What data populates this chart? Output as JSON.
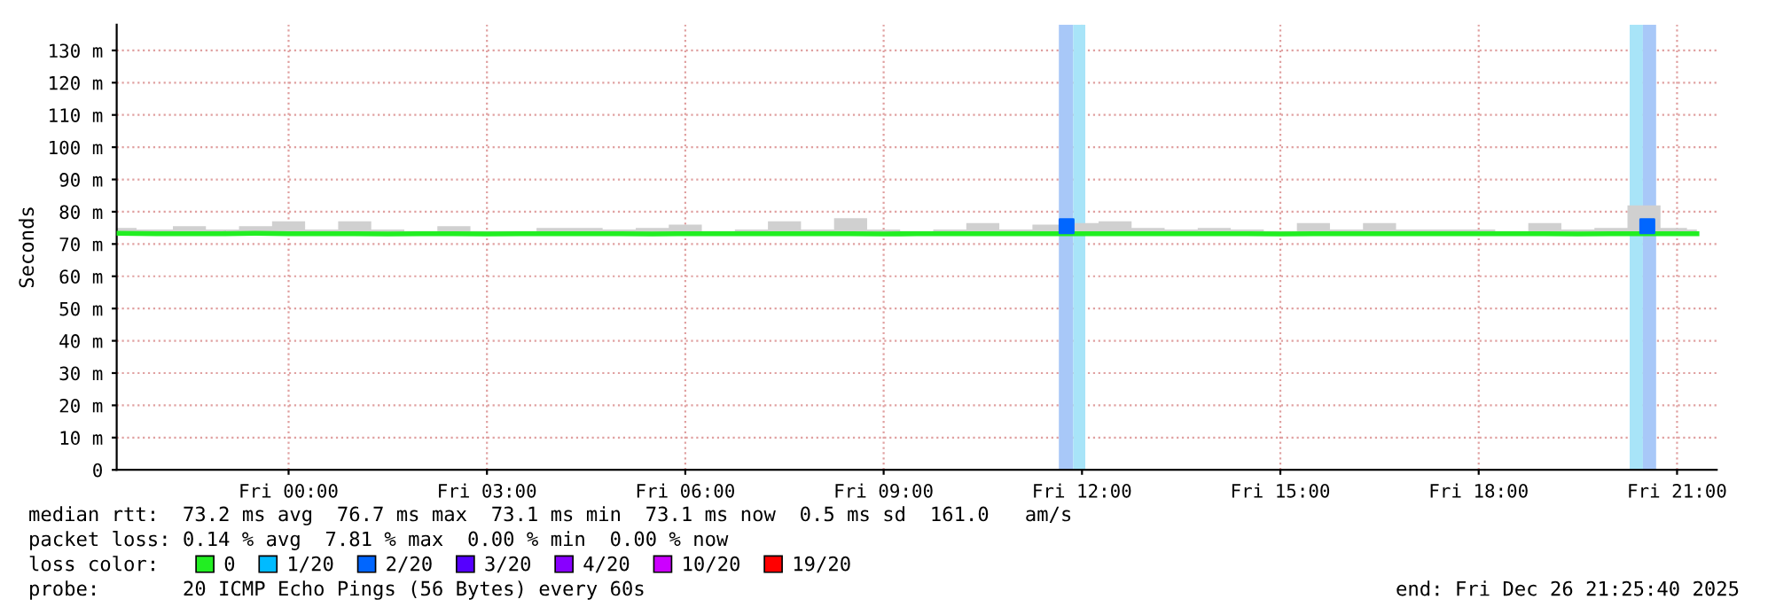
{
  "chart_data": {
    "type": "line",
    "ylabel": "Seconds",
    "xlim": [
      "2025-12-25T21:24",
      "2025-12-26T21:36"
    ],
    "ylim": [
      0,
      138
    ],
    "xticks": [
      {
        "value": "2025-12-26T00:00",
        "label": "Fri 00:00"
      },
      {
        "value": "2025-12-26T03:00",
        "label": "Fri 03:00"
      },
      {
        "value": "2025-12-26T06:00",
        "label": "Fri 06:00"
      },
      {
        "value": "2025-12-26T09:00",
        "label": "Fri 09:00"
      },
      {
        "value": "2025-12-26T12:00",
        "label": "Fri 12:00"
      },
      {
        "value": "2025-12-26T15:00",
        "label": "Fri 15:00"
      },
      {
        "value": "2025-12-26T18:00",
        "label": "Fri 18:00"
      },
      {
        "value": "2025-12-26T21:00",
        "label": "Fri 21:00"
      }
    ],
    "yticks": [
      0,
      {
        "value": 10,
        "label": "10 m"
      },
      {
        "value": 20,
        "label": "20 m"
      },
      {
        "value": 30,
        "label": "30 m"
      },
      {
        "value": 40,
        "label": "40 m"
      },
      {
        "value": 50,
        "label": "50 m"
      },
      {
        "value": 60,
        "label": "60 m"
      },
      {
        "value": 70,
        "label": "70 m"
      },
      {
        "value": 80,
        "label": "80 m"
      },
      {
        "value": 90,
        "label": "90 m"
      },
      {
        "value": 100,
        "label": "100 m"
      },
      {
        "value": 110,
        "label": "110 m"
      },
      {
        "value": 120,
        "label": "120 m"
      },
      {
        "value": 130,
        "label": "130 m"
      }
    ],
    "grid": true,
    "legend": "bottom",
    "legend_title": "loss color:",
    "bands": [
      {
        "axis": "x",
        "from": "2025-12-26T11:39",
        "to": "2025-12-26T11:52",
        "color": "#a8c8f8"
      },
      {
        "axis": "x",
        "from": "2025-12-26T11:52",
        "to": "2025-12-26T12:03",
        "color": "#a8e4f8"
      },
      {
        "axis": "x",
        "from": "2025-12-26T20:17",
        "to": "2025-12-26T20:29",
        "color": "#a8e4f8"
      },
      {
        "axis": "x",
        "from": "2025-12-26T20:29",
        "to": "2025-12-26T20:41",
        "color": "#a8c8f8"
      }
    ],
    "series": [
      {
        "name": "0",
        "color": "#22ee22",
        "x": [
          "2025-12-25T21:24",
          "2025-12-25T22:00",
          "2025-12-25T22:30",
          "2025-12-25T23:00",
          "2025-12-25T23:30",
          "2025-12-26T00:00",
          "2025-12-26T00:30",
          "2025-12-26T01:00",
          "2025-12-26T01:30",
          "2025-12-26T02:00",
          "2025-12-26T02:30",
          "2025-12-26T03:00",
          "2025-12-26T03:30",
          "2025-12-26T04:00",
          "2025-12-26T04:30",
          "2025-12-26T05:00",
          "2025-12-26T05:30",
          "2025-12-26T06:00",
          "2025-12-26T06:30",
          "2025-12-26T07:00",
          "2025-12-26T07:30",
          "2025-12-26T08:00",
          "2025-12-26T08:30",
          "2025-12-26T09:00",
          "2025-12-26T09:30",
          "2025-12-26T10:00",
          "2025-12-26T10:30",
          "2025-12-26T11:00",
          "2025-12-26T11:30",
          "2025-12-26T12:00",
          "2025-12-26T12:30",
          "2025-12-26T13:00",
          "2025-12-26T13:30",
          "2025-12-26T14:00",
          "2025-12-26T14:30",
          "2025-12-26T15:00",
          "2025-12-26T15:30",
          "2025-12-26T16:00",
          "2025-12-26T16:30",
          "2025-12-26T17:00",
          "2025-12-26T17:30",
          "2025-12-26T18:00",
          "2025-12-26T18:30",
          "2025-12-26T19:00",
          "2025-12-26T19:30",
          "2025-12-26T20:00",
          "2025-12-26T20:30",
          "2025-12-26T21:00",
          "2025-12-26T21:18"
        ],
        "values": [
          73.3,
          73.2,
          73.2,
          73.2,
          73.3,
          73.2,
          73.2,
          73.2,
          73.1,
          73.2,
          73.2,
          73.1,
          73.2,
          73.2,
          73.2,
          73.2,
          73.1,
          73.2,
          73.2,
          73.2,
          73.2,
          73.2,
          73.2,
          73.1,
          73.2,
          73.2,
          73.2,
          73.2,
          73.2,
          73.2,
          73.2,
          73.2,
          73.2,
          73.2,
          73.2,
          73.1,
          73.2,
          73.2,
          73.2,
          73.2,
          73.2,
          73.2,
          73.2,
          73.2,
          73.1,
          73.2,
          73.2,
          73.2,
          73.2
        ],
        "lower": [
          73.0,
          73.0,
          73.0,
          73.0,
          73.0,
          73.0,
          73.0,
          73.0,
          73.0,
          73.0,
          73.0,
          73.0,
          73.0,
          73.0,
          73.0,
          73.0,
          73.0,
          73.0,
          73.0,
          73.0,
          73.0,
          73.0,
          73.0,
          73.0,
          73.0,
          73.0,
          73.0,
          73.0,
          73.0,
          73.0,
          73.0,
          73.0,
          73.0,
          73.0,
          73.0,
          73.0,
          73.0,
          73.0,
          73.0,
          73.0,
          73.0,
          73.0,
          73.0,
          73.0,
          73.0,
          73.0,
          73.0,
          73.0,
          73.0
        ],
        "upper": [
          75.0,
          74.5,
          75.5,
          74.5,
          75.5,
          77.0,
          74.5,
          77.0,
          74.5,
          74.0,
          75.5,
          74.0,
          74.0,
          75.0,
          75.0,
          74.5,
          75.0,
          76.0,
          74.0,
          74.5,
          77.0,
          74.5,
          78.0,
          74.5,
          74.0,
          74.5,
          76.5,
          74.5,
          76.0,
          76.5,
          77.0,
          75.0,
          74.5,
          75.0,
          74.5,
          74.0,
          76.5,
          74.5,
          76.5,
          74.5,
          74.5,
          74.5,
          74.0,
          76.5,
          74.5,
          75.0,
          82.0,
          75.0,
          74.5
        ]
      },
      {
        "name": "1/20",
        "type": "scatter",
        "color": "#00bbff"
      },
      {
        "name": "2/20",
        "type": "scatter",
        "color": "#0066ff",
        "x": [
          "2025-12-26T11:46",
          "2025-12-26T20:33"
        ],
        "values": [
          75.5,
          75.5
        ]
      },
      {
        "name": "3/20",
        "type": "scatter",
        "color": "#5500ff"
      },
      {
        "name": "4/20",
        "type": "scatter",
        "color": "#8800ff"
      },
      {
        "name": "10/20",
        "type": "scatter",
        "color": "#cc00ff"
      },
      {
        "name": "19/20",
        "type": "scatter",
        "color": "#ff0000"
      }
    ],
    "annotations": [
      "median rtt:  73.2 ms avg  76.7 ms max  73.1 ms min  73.1 ms now  0.5 ms sd  161.0   am/s",
      "packet loss: 0.14 % avg  7.81 % max  0.00 % min  0.00 % now",
      "probe:       20 ICMP Echo Pings (56 Bytes) every 60s",
      "end: Fri Dec 26 21:25:40 2025"
    ]
  }
}
